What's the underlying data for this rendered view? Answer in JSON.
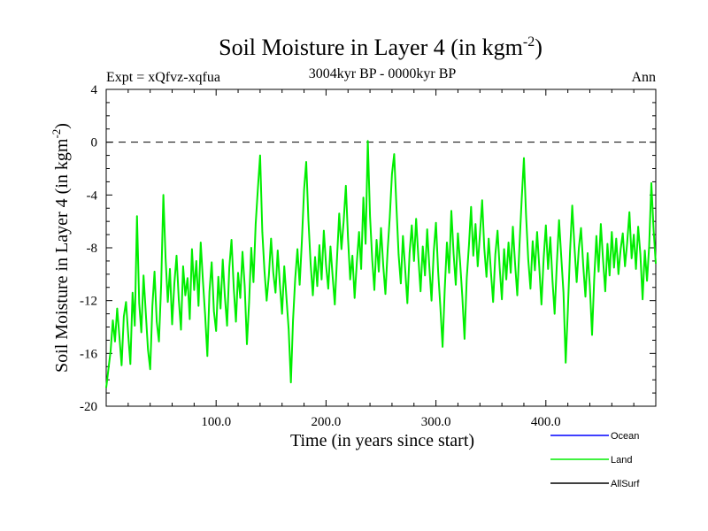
{
  "chart_data": {
    "type": "line",
    "title": "Soil Moisture in Layer 4 (in kgm",
    "title_sup": "-2",
    "title_close": ")",
    "subtitle": "3004kyr BP - 0000kyr BP",
    "expt_label": "Expt = xQfvz-xqfua",
    "season_label": "Ann",
    "xlabel": "Time (in years since start)",
    "ylabel": "Soil Moisture in Layer 4 (in kgm",
    "ylabel_sup": "-2",
    "ylabel_close": ")",
    "xlim": [
      0,
      500
    ],
    "ylim": [
      -20,
      4
    ],
    "x_ticks": [
      {
        "value": 100,
        "label": "100.0"
      },
      {
        "value": 200,
        "label": "200.0"
      },
      {
        "value": 300,
        "label": "300.0"
      },
      {
        "value": 400,
        "label": "400.0"
      }
    ],
    "y_ticks": [
      {
        "value": 4,
        "label": "4"
      },
      {
        "value": 0,
        "label": "0"
      },
      {
        "value": -4,
        "label": "-4"
      },
      {
        "value": -8,
        "label": "-8"
      },
      {
        "value": -12,
        "label": "-12"
      },
      {
        "value": -16,
        "label": "-16"
      },
      {
        "value": -20,
        "label": "-20"
      }
    ],
    "reference_line": {
      "y": 0,
      "style": "dashed"
    },
    "legend": [
      {
        "name": "Ocean",
        "color": "#0000ff"
      },
      {
        "name": "Land",
        "color": "#00ee00"
      },
      {
        "name": "AllSurf",
        "color": "#000000"
      }
    ],
    "series": [
      {
        "name": "Land",
        "color": "#00ee00",
        "points": [
          [
            0,
            -18.6
          ],
          [
            2,
            -17.2
          ],
          [
            4,
            -15.8
          ],
          [
            6,
            -13.5
          ],
          [
            8,
            -15.1
          ],
          [
            10,
            -12.6
          ],
          [
            12,
            -14.7
          ],
          [
            14,
            -16.9
          ],
          [
            16,
            -13.2
          ],
          [
            18,
            -12.1
          ],
          [
            20,
            -14.5
          ],
          [
            22,
            -16.8
          ],
          [
            24,
            -11.4
          ],
          [
            26,
            -13.9
          ],
          [
            28,
            -5.6
          ],
          [
            30,
            -12.2
          ],
          [
            32,
            -14.4
          ],
          [
            34,
            -10.1
          ],
          [
            36,
            -12.9
          ],
          [
            38,
            -15.7
          ],
          [
            40,
            -17.2
          ],
          [
            42,
            -12.4
          ],
          [
            44,
            -9.8
          ],
          [
            46,
            -13.6
          ],
          [
            48,
            -15.1
          ],
          [
            50,
            -10.8
          ],
          [
            52,
            -4.0
          ],
          [
            54,
            -8.8
          ],
          [
            56,
            -12.1
          ],
          [
            58,
            -9.6
          ],
          [
            60,
            -13.8
          ],
          [
            62,
            -10.7
          ],
          [
            64,
            -8.6
          ],
          [
            66,
            -11.9
          ],
          [
            68,
            -14.2
          ],
          [
            70,
            -9.4
          ],
          [
            72,
            -11.6
          ],
          [
            74,
            -10.3
          ],
          [
            76,
            -13.4
          ],
          [
            78,
            -8.1
          ],
          [
            80,
            -11.2
          ],
          [
            82,
            -9.0
          ],
          [
            84,
            -12.4
          ],
          [
            86,
            -7.6
          ],
          [
            88,
            -10.5
          ],
          [
            90,
            -13.1
          ],
          [
            92,
            -16.2
          ],
          [
            94,
            -11.3
          ],
          [
            96,
            -9.1
          ],
          [
            98,
            -12.8
          ],
          [
            100,
            -14.3
          ],
          [
            102,
            -10.2
          ],
          [
            104,
            -12.6
          ],
          [
            106,
            -8.9
          ],
          [
            108,
            -11.7
          ],
          [
            110,
            -13.9
          ],
          [
            112,
            -9.5
          ],
          [
            114,
            -7.4
          ],
          [
            116,
            -11.0
          ],
          [
            118,
            -13.6
          ],
          [
            120,
            -9.9
          ],
          [
            122,
            -11.8
          ],
          [
            124,
            -8.3
          ],
          [
            126,
            -10.9
          ],
          [
            128,
            -15.3
          ],
          [
            130,
            -12.1
          ],
          [
            132,
            -8.0
          ],
          [
            134,
            -10.6
          ],
          [
            136,
            -6.2
          ],
          [
            138,
            -3.5
          ],
          [
            140,
            -1.0
          ],
          [
            142,
            -6.8
          ],
          [
            144,
            -9.7
          ],
          [
            146,
            -12.0
          ],
          [
            148,
            -10.1
          ],
          [
            150,
            -7.3
          ],
          [
            152,
            -9.9
          ],
          [
            154,
            -11.4
          ],
          [
            156,
            -8.2
          ],
          [
            158,
            -10.7
          ],
          [
            160,
            -13.0
          ],
          [
            162,
            -9.4
          ],
          [
            164,
            -11.8
          ],
          [
            166,
            -14.2
          ],
          [
            168,
            -18.2
          ],
          [
            170,
            -13.5
          ],
          [
            172,
            -10.3
          ],
          [
            174,
            -8.1
          ],
          [
            176,
            -10.8
          ],
          [
            178,
            -7.5
          ],
          [
            180,
            -3.6
          ],
          [
            182,
            -1.5
          ],
          [
            184,
            -5.9
          ],
          [
            186,
            -9.2
          ],
          [
            188,
            -11.6
          ],
          [
            190,
            -8.7
          ],
          [
            192,
            -10.9
          ],
          [
            194,
            -7.8
          ],
          [
            196,
            -10.4
          ],
          [
            198,
            -6.7
          ],
          [
            200,
            -9.3
          ],
          [
            202,
            -11.1
          ],
          [
            204,
            -7.9
          ],
          [
            206,
            -10.2
          ],
          [
            208,
            -12.3
          ],
          [
            210,
            -8.8
          ],
          [
            212,
            -5.4
          ],
          [
            214,
            -8.1
          ],
          [
            216,
            -6.0
          ],
          [
            218,
            -3.3
          ],
          [
            220,
            -7.2
          ],
          [
            222,
            -10.4
          ],
          [
            224,
            -8.6
          ],
          [
            226,
            -11.8
          ],
          [
            228,
            -9.1
          ],
          [
            230,
            -6.8
          ],
          [
            232,
            -9.6
          ],
          [
            234,
            -4.2
          ],
          [
            236,
            -7.7
          ],
          [
            238,
            0.1
          ],
          [
            240,
            -5.6
          ],
          [
            242,
            -8.9
          ],
          [
            244,
            -11.2
          ],
          [
            246,
            -7.4
          ],
          [
            248,
            -9.8
          ],
          [
            250,
            -6.5
          ],
          [
            252,
            -9.3
          ],
          [
            254,
            -11.5
          ],
          [
            256,
            -8.2
          ],
          [
            258,
            -5.7
          ],
          [
            260,
            -2.4
          ],
          [
            262,
            -0.9
          ],
          [
            264,
            -4.8
          ],
          [
            266,
            -8.5
          ],
          [
            268,
            -10.7
          ],
          [
            270,
            -7.1
          ],
          [
            272,
            -9.6
          ],
          [
            274,
            -12.2
          ],
          [
            276,
            -8.4
          ],
          [
            278,
            -6.3
          ],
          [
            280,
            -9.0
          ],
          [
            282,
            -5.8
          ],
          [
            284,
            -8.7
          ],
          [
            286,
            -11.3
          ],
          [
            288,
            -7.9
          ],
          [
            290,
            -10.1
          ],
          [
            292,
            -6.6
          ],
          [
            294,
            -9.4
          ],
          [
            296,
            -12.0
          ],
          [
            298,
            -8.3
          ],
          [
            300,
            -6.1
          ],
          [
            302,
            -9.8
          ],
          [
            304,
            -12.5
          ],
          [
            306,
            -15.5
          ],
          [
            308,
            -11.2
          ],
          [
            310,
            -7.6
          ],
          [
            312,
            -9.9
          ],
          [
            314,
            -5.2
          ],
          [
            316,
            -8.4
          ],
          [
            318,
            -10.8
          ],
          [
            320,
            -6.9
          ],
          [
            322,
            -9.1
          ],
          [
            324,
            -11.7
          ],
          [
            326,
            -14.9
          ],
          [
            328,
            -10.3
          ],
          [
            330,
            -7.8
          ],
          [
            332,
            -4.9
          ],
          [
            334,
            -8.6
          ],
          [
            336,
            -6.2
          ],
          [
            338,
            -9.4
          ],
          [
            340,
            -7.0
          ],
          [
            342,
            -4.4
          ],
          [
            344,
            -8.0
          ],
          [
            346,
            -10.2
          ],
          [
            348,
            -7.3
          ],
          [
            350,
            -9.8
          ],
          [
            352,
            -12.1
          ],
          [
            354,
            -8.5
          ],
          [
            356,
            -6.7
          ],
          [
            358,
            -9.5
          ],
          [
            360,
            -11.9
          ],
          [
            362,
            -8.1
          ],
          [
            364,
            -10.4
          ],
          [
            366,
            -7.6
          ],
          [
            368,
            -9.9
          ],
          [
            370,
            -6.4
          ],
          [
            372,
            -9.2
          ],
          [
            374,
            -11.6
          ],
          [
            376,
            -7.8
          ],
          [
            378,
            -4.3
          ],
          [
            380,
            -1.2
          ],
          [
            382,
            -5.5
          ],
          [
            384,
            -8.9
          ],
          [
            386,
            -11.1
          ],
          [
            388,
            -7.5
          ],
          [
            390,
            -9.7
          ],
          [
            392,
            -6.8
          ],
          [
            394,
            -9.4
          ],
          [
            396,
            -12.3
          ],
          [
            398,
            -8.8
          ],
          [
            400,
            -6.3
          ],
          [
            402,
            -9.6
          ],
          [
            404,
            -7.2
          ],
          [
            406,
            -10.5
          ],
          [
            408,
            -13.0
          ],
          [
            410,
            -9.2
          ],
          [
            412,
            -5.9
          ],
          [
            414,
            -8.7
          ],
          [
            416,
            -11.4
          ],
          [
            418,
            -16.7
          ],
          [
            420,
            -12.8
          ],
          [
            422,
            -8.3
          ],
          [
            424,
            -4.8
          ],
          [
            426,
            -7.9
          ],
          [
            428,
            -10.6
          ],
          [
            430,
            -8.0
          ],
          [
            432,
            -6.5
          ],
          [
            434,
            -9.3
          ],
          [
            436,
            -11.7
          ],
          [
            438,
            -8.4
          ],
          [
            440,
            -10.9
          ],
          [
            442,
            -14.6
          ],
          [
            444,
            -10.4
          ],
          [
            446,
            -7.1
          ],
          [
            448,
            -9.8
          ],
          [
            450,
            -6.2
          ],
          [
            452,
            -8.9
          ],
          [
            454,
            -11.3
          ],
          [
            456,
            -7.7
          ],
          [
            458,
            -10.1
          ],
          [
            460,
            -6.8
          ],
          [
            462,
            -9.5
          ],
          [
            464,
            -7.3
          ],
          [
            466,
            -10.0
          ],
          [
            468,
            -8.1
          ],
          [
            470,
            -6.9
          ],
          [
            472,
            -9.4
          ],
          [
            474,
            -7.6
          ],
          [
            476,
            -5.3
          ],
          [
            478,
            -8.8
          ],
          [
            480,
            -7.0
          ],
          [
            482,
            -9.6
          ],
          [
            484,
            -6.4
          ],
          [
            486,
            -8.5
          ],
          [
            488,
            -11.9
          ],
          [
            490,
            -8.2
          ],
          [
            492,
            -10.5
          ],
          [
            494,
            -7.9
          ],
          [
            496,
            -3.1
          ],
          [
            498,
            -6.6
          ],
          [
            500,
            -9.2
          ]
        ]
      }
    ]
  }
}
